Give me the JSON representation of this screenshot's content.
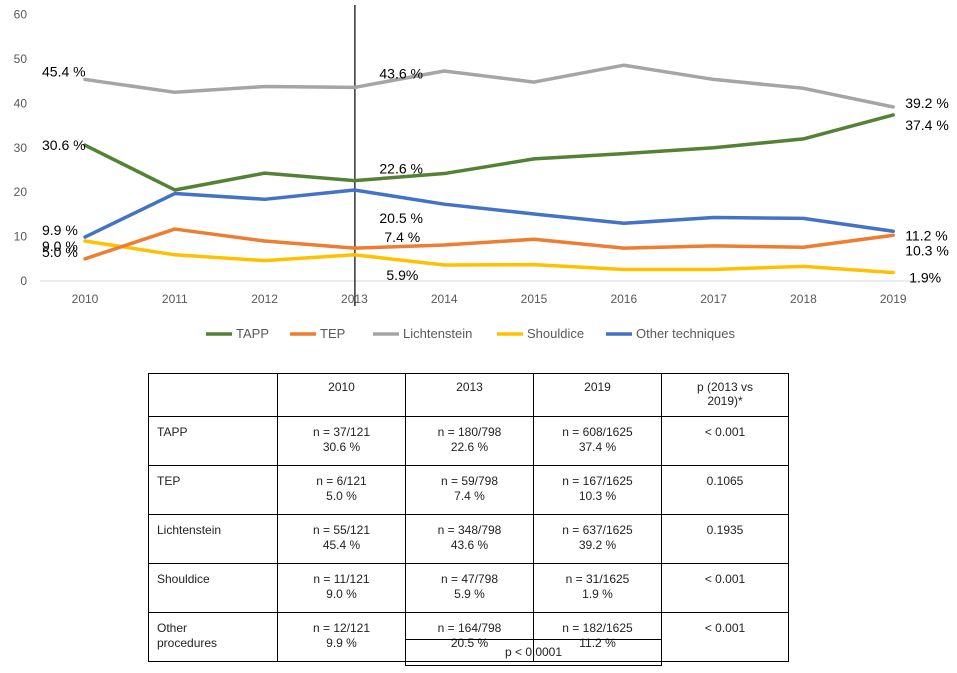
{
  "chart_data": {
    "type": "line",
    "x": [
      "2010",
      "2011",
      "2012",
      "2013",
      "2014",
      "2015",
      "2016",
      "2017",
      "2018",
      "2019"
    ],
    "ylim": [
      0,
      60
    ],
    "yticks": [
      0,
      10,
      20,
      30,
      40,
      50,
      60
    ],
    "grid": false,
    "legend_position": "bottom",
    "marker_line_at": "2013",
    "series": [
      {
        "name": "TAPP",
        "color": "#548235",
        "values": [
          30.6,
          20.5,
          24.3,
          22.6,
          24.2,
          27.5,
          28.7,
          30.0,
          32.0,
          37.4
        ]
      },
      {
        "name": "TEP",
        "color": "#ED7D31",
        "values": [
          5.0,
          11.7,
          9.0,
          7.4,
          8.1,
          9.4,
          7.4,
          7.9,
          7.6,
          10.3
        ]
      },
      {
        "name": "Lichtenstein",
        "color": "#A5A5A5",
        "values": [
          45.4,
          42.5,
          43.8,
          43.6,
          47.3,
          44.8,
          48.6,
          45.4,
          43.4,
          39.2
        ]
      },
      {
        "name": "Shouldice",
        "color": "#FFC000",
        "values": [
          9.0,
          5.9,
          4.6,
          5.9,
          3.6,
          3.7,
          2.6,
          2.6,
          3.3,
          1.9
        ]
      },
      {
        "name": "Other techniques",
        "color": "#4472C4",
        "values": [
          9.9,
          19.7,
          18.4,
          20.5,
          17.3,
          15.1,
          13.0,
          14.3,
          14.1,
          11.2
        ]
      }
    ],
    "annotations": [
      {
        "series": "Lichtenstein",
        "x": "2010",
        "text": "45.4 %"
      },
      {
        "series": "Lichtenstein",
        "x": "2013",
        "text": "43.6 %"
      },
      {
        "series": "Lichtenstein",
        "x": "2019",
        "text": "39.2 %"
      },
      {
        "series": "TAPP",
        "x": "2010",
        "text": "30.6 %"
      },
      {
        "series": "TAPP",
        "x": "2013",
        "text": "22.6 %"
      },
      {
        "series": "TAPP",
        "x": "2019",
        "text": "37.4 %"
      },
      {
        "series": "Other techniques",
        "x": "2010",
        "text": "9.9 %"
      },
      {
        "series": "Other techniques",
        "x": "2013",
        "text": "20.5 %"
      },
      {
        "series": "Other techniques",
        "x": "2019",
        "text": "11.2 %"
      },
      {
        "series": "Shouldice",
        "x": "2010",
        "text": "9.0 %"
      },
      {
        "series": "Shouldice",
        "x": "2013",
        "text": "5.9%"
      },
      {
        "series": "Shouldice",
        "x": "2019",
        "text": "1.9%"
      },
      {
        "series": "TEP",
        "x": "2010",
        "text": "5.0 %"
      },
      {
        "series": "TEP",
        "x": "2013",
        "text": "7.4 %"
      },
      {
        "series": "TEP",
        "x": "2019",
        "text": "10.3 %"
      }
    ]
  },
  "table": {
    "headers": [
      "",
      "2010",
      "2013",
      "2019",
      "p (2013 vs 2019)*"
    ],
    "rows": [
      {
        "label": "TAPP",
        "c2010": [
          "n = 37/121",
          "30.6 %"
        ],
        "c2013": [
          "n = 180/798",
          "22.6 %"
        ],
        "c2019": [
          "n = 608/1625",
          "37.4 %"
        ],
        "p": "< 0.001"
      },
      {
        "label": "TEP",
        "c2010": [
          "n = 6/121",
          "5.0 %"
        ],
        "c2013": [
          "n = 59/798",
          "7.4 %"
        ],
        "c2019": [
          "n = 167/1625",
          "10.3 %"
        ],
        "p": "0.1065"
      },
      {
        "label": "Lichtenstein",
        "c2010": [
          "n = 55/121",
          "45.4 %"
        ],
        "c2013": [
          "n = 348/798",
          "43.6 %"
        ],
        "c2019": [
          "n = 637/1625",
          "39.2 %"
        ],
        "p": "0.1935"
      },
      {
        "label": "Shouldice",
        "c2010": [
          "n = 11/121",
          "9.0 %"
        ],
        "c2013": [
          "n = 47/798",
          "5.9 %"
        ],
        "c2019": [
          "n = 31/1625",
          "1.9 %"
        ],
        "p": "< 0.001"
      },
      {
        "label_lines": [
          "Other",
          "procedures"
        ],
        "c2010": [
          "n = 12/121",
          "9.9 %"
        ],
        "c2013": [
          "n = 164/798",
          "20.5 %"
        ],
        "c2019": [
          "n = 182/1625",
          "11.2 %"
        ],
        "p": "< 0.001"
      }
    ],
    "overall_p": "p < 0.0001"
  }
}
